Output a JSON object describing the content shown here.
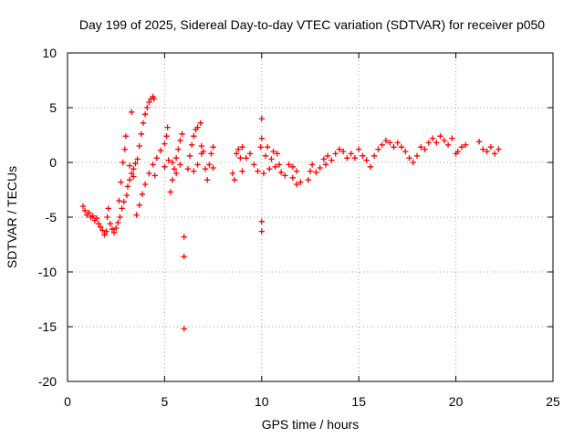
{
  "chart_data": {
    "type": "scatter",
    "title": "Day 199 of 2025, Sidereal Day-to-day VTEC variation (SDTVAR) for receiver p050",
    "xlabel": "GPS time / hours",
    "ylabel": "SDTVAR / TECUs",
    "xlim": [
      0,
      25
    ],
    "ylim": [
      -20,
      10
    ],
    "xticks": [
      0,
      5,
      10,
      15,
      20,
      25
    ],
    "yticks": [
      -20,
      -15,
      -10,
      -5,
      0,
      5,
      10
    ],
    "xtick_labels": [
      "0",
      "5",
      "10",
      "15",
      "20",
      "25"
    ],
    "ytick_labels": [
      "-20",
      "-15",
      "-10",
      "-5",
      "0",
      "5",
      "10"
    ],
    "grid": true,
    "marker": "plus",
    "color": "#ff0000",
    "series": [
      {
        "name": "SDTVAR",
        "points": [
          [
            0.8,
            -4.0
          ],
          [
            0.9,
            -4.4
          ],
          [
            1.0,
            -4.8
          ],
          [
            1.1,
            -4.6
          ],
          [
            1.2,
            -5.0
          ],
          [
            1.3,
            -4.9
          ],
          [
            1.4,
            -5.3
          ],
          [
            1.5,
            -5.1
          ],
          [
            1.6,
            -5.6
          ],
          [
            1.7,
            -5.9
          ],
          [
            1.8,
            -6.2
          ],
          [
            1.9,
            -6.6
          ],
          [
            2.0,
            -6.3
          ],
          [
            2.05,
            -5.0
          ],
          [
            2.1,
            -4.2
          ],
          [
            2.2,
            -5.6
          ],
          [
            2.3,
            -6.1
          ],
          [
            2.4,
            -6.4
          ],
          [
            2.5,
            -6.0
          ],
          [
            2.6,
            -5.5
          ],
          [
            2.65,
            -3.5
          ],
          [
            2.7,
            -5.0
          ],
          [
            2.75,
            -1.8
          ],
          [
            2.8,
            -4.2
          ],
          [
            2.85,
            0.0
          ],
          [
            2.9,
            -3.6
          ],
          [
            2.95,
            1.2
          ],
          [
            3.0,
            2.4
          ],
          [
            3.05,
            -3.0
          ],
          [
            3.1,
            -2.2
          ],
          [
            3.2,
            -1.6
          ],
          [
            3.3,
            4.6
          ],
          [
            3.3,
            -1.0
          ],
          [
            3.4,
            -0.6
          ],
          [
            3.5,
            -0.1
          ],
          [
            3.6,
            0.3
          ],
          [
            3.7,
            1.5
          ],
          [
            3.8,
            2.6
          ],
          [
            3.9,
            3.6
          ],
          [
            4.0,
            4.4
          ],
          [
            4.1,
            5.0
          ],
          [
            4.2,
            5.5
          ],
          [
            4.3,
            5.8
          ],
          [
            4.4,
            6.0
          ],
          [
            4.45,
            5.8
          ],
          [
            3.55,
            -4.8
          ],
          [
            3.7,
            -3.9
          ],
          [
            3.85,
            -2.9
          ],
          [
            4.0,
            -2.0
          ],
          [
            4.2,
            -1.0
          ],
          [
            4.4,
            -0.2
          ],
          [
            4.6,
            0.4
          ],
          [
            4.8,
            1.1
          ],
          [
            5.0,
            1.7
          ],
          [
            5.1,
            2.4
          ],
          [
            5.15,
            3.2
          ],
          [
            3.2,
            -0.3
          ],
          [
            3.4,
            -1.3
          ],
          [
            4.5,
            -1.2
          ],
          [
            5.0,
            -0.4
          ],
          [
            5.2,
            0.2
          ],
          [
            5.3,
            -2.7
          ],
          [
            5.4,
            -1.6
          ],
          [
            5.5,
            -0.6
          ],
          [
            5.6,
            0.4
          ],
          [
            5.7,
            1.2
          ],
          [
            5.8,
            2.0
          ],
          [
            5.9,
            2.6
          ],
          [
            5.4,
            0.0
          ],
          [
            5.6,
            -1.0
          ],
          [
            5.8,
            -0.2
          ],
          [
            6.0,
            -6.8
          ],
          [
            6.0,
            -8.6
          ],
          [
            6.0,
            -15.2
          ],
          [
            6.2,
            -0.6
          ],
          [
            6.3,
            0.6
          ],
          [
            6.4,
            1.6
          ],
          [
            6.5,
            2.4
          ],
          [
            6.6,
            3.0
          ],
          [
            6.7,
            3.2
          ],
          [
            6.85,
            3.6
          ],
          [
            6.9,
            1.5
          ],
          [
            6.5,
            -0.8
          ],
          [
            6.7,
            -0.2
          ],
          [
            6.9,
            0.8
          ],
          [
            7.0,
            1.0
          ],
          [
            7.1,
            -0.6
          ],
          [
            7.2,
            -1.6
          ],
          [
            7.3,
            -0.2
          ],
          [
            7.4,
            0.8
          ],
          [
            7.5,
            -0.5
          ],
          [
            7.5,
            1.4
          ],
          [
            8.5,
            -1.0
          ],
          [
            8.6,
            -1.6
          ],
          [
            8.7,
            0.8
          ],
          [
            8.8,
            1.2
          ],
          [
            8.9,
            0.4
          ],
          [
            9.0,
            -0.8
          ],
          [
            9.0,
            1.4
          ],
          [
            9.2,
            0.4
          ],
          [
            9.4,
            0.8
          ],
          [
            9.6,
            -0.2
          ],
          [
            9.8,
            -0.8
          ],
          [
            9.95,
            1.4
          ],
          [
            10.0,
            2.2
          ],
          [
            10.0,
            4.0
          ],
          [
            10.0,
            -5.4
          ],
          [
            10.0,
            -6.3
          ],
          [
            10.1,
            -1.0
          ],
          [
            10.2,
            0.6
          ],
          [
            10.3,
            1.4
          ],
          [
            10.4,
            -0.6
          ],
          [
            10.5,
            0.3
          ],
          [
            10.6,
            1.0
          ],
          [
            10.7,
            -0.4
          ],
          [
            10.8,
            0.8
          ],
          [
            10.9,
            -0.2
          ],
          [
            11.0,
            -0.9
          ],
          [
            11.2,
            -1.2
          ],
          [
            11.4,
            -0.2
          ],
          [
            11.6,
            -1.4
          ],
          [
            11.8,
            -2.0
          ],
          [
            12.0,
            -1.8
          ],
          [
            11.6,
            -0.4
          ],
          [
            11.8,
            -0.8
          ],
          [
            12.4,
            -1.6
          ],
          [
            12.5,
            -0.8
          ],
          [
            12.6,
            -0.2
          ],
          [
            12.8,
            -0.9
          ],
          [
            13.0,
            -0.5
          ],
          [
            13.2,
            0.3
          ],
          [
            13.3,
            -0.2
          ],
          [
            13.4,
            0.6
          ],
          [
            13.6,
            0.2
          ],
          [
            13.8,
            0.8
          ],
          [
            14.0,
            1.2
          ],
          [
            14.2,
            1.0
          ],
          [
            14.4,
            0.4
          ],
          [
            14.6,
            0.8
          ],
          [
            14.8,
            0.4
          ],
          [
            15.0,
            1.2
          ],
          [
            15.2,
            0.6
          ],
          [
            15.4,
            0.2
          ],
          [
            15.6,
            -0.4
          ],
          [
            15.8,
            0.6
          ],
          [
            16.0,
            1.2
          ],
          [
            16.2,
            1.6
          ],
          [
            16.4,
            2.0
          ],
          [
            16.6,
            1.8
          ],
          [
            16.8,
            1.4
          ],
          [
            17.0,
            1.8
          ],
          [
            17.2,
            1.4
          ],
          [
            17.4,
            1.0
          ],
          [
            17.6,
            0.4
          ],
          [
            17.8,
            0.0
          ],
          [
            18.0,
            0.6
          ],
          [
            18.2,
            1.4
          ],
          [
            18.4,
            1.2
          ],
          [
            18.6,
            1.8
          ],
          [
            18.8,
            2.2
          ],
          [
            19.0,
            1.8
          ],
          [
            19.2,
            2.4
          ],
          [
            19.4,
            2.0
          ],
          [
            19.6,
            1.6
          ],
          [
            19.8,
            2.2
          ],
          [
            20.0,
            0.8
          ],
          [
            20.1,
            1.0
          ],
          [
            20.3,
            1.4
          ],
          [
            20.5,
            1.6
          ],
          [
            21.2,
            1.9
          ],
          [
            21.4,
            1.2
          ],
          [
            21.6,
            1.0
          ],
          [
            21.8,
            1.4
          ],
          [
            22.0,
            0.8
          ],
          [
            22.2,
            1.2
          ]
        ]
      }
    ]
  }
}
